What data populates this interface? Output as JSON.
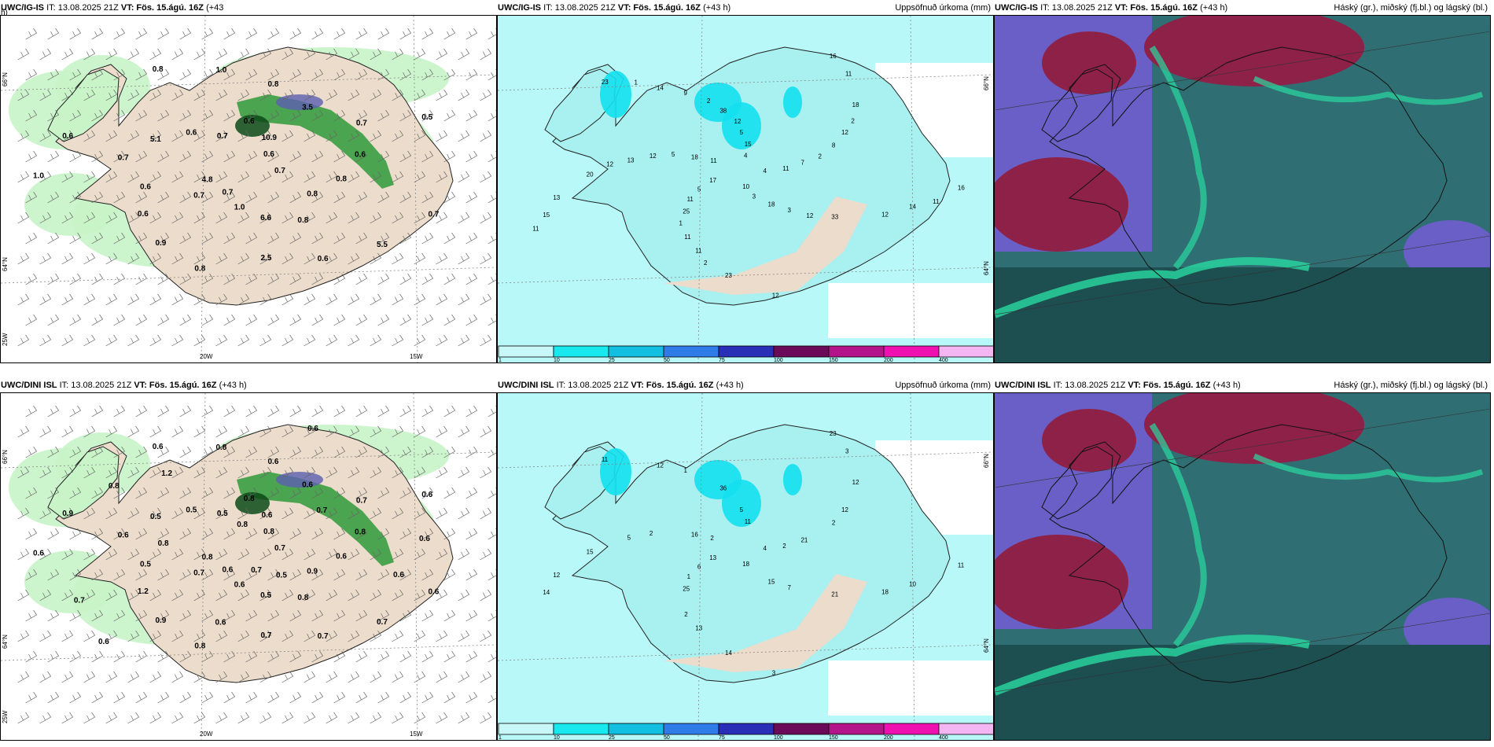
{
  "panels": {
    "wind_igis": {
      "model": "UWC/IG-IS",
      "it_label": "IT: 13.08.2025 21Z",
      "vt_label": "VT: Fös. 15.ágú. 16Z",
      "lead": "(+43",
      "lead_cont": "h)",
      "lat_labels": [
        "66°N",
        "64°N",
        "25W"
      ],
      "lon_labels": [
        "20W",
        "15W"
      ],
      "values": [
        "0.7",
        "0.7",
        "0.6",
        "0.8",
        "0.7",
        "0.7",
        "0.8",
        "0.8",
        "0.7",
        "4.8",
        "10.9",
        "6.6",
        "5.1",
        "0.6",
        "0.9",
        "1.0",
        "5.5",
        "1.0",
        "0.6",
        "1.0",
        "0.6",
        "0.8",
        "0.6",
        "0.8",
        "0.6",
        "0.6",
        "0.5",
        "0.7",
        "0.7",
        "0.8",
        "0.6",
        "3.5",
        "2.5"
      ]
    },
    "precip_igis": {
      "model": "UWC/IG-IS",
      "it_label": "IT: 13.08.2025 21Z",
      "vt_label": "VT: Fös. 15.ágú. 16Z",
      "lead": "(+43 h)",
      "field": "Uppsöfnuð úrkoma (mm)",
      "lat_labels": [
        "66°N",
        "64°N"
      ],
      "values": [
        "4",
        "5",
        "5",
        "3",
        "13",
        "12",
        "11",
        "14",
        "14",
        "15",
        "16",
        "10",
        "18",
        "7",
        "25",
        "38",
        "33",
        "20",
        "18",
        "23",
        "23",
        "16",
        "17",
        "15",
        "18",
        "12",
        "8",
        "11",
        "9",
        "12",
        "13",
        "11",
        "12",
        "11",
        "11",
        "11",
        "12",
        "12",
        "12",
        "2",
        "2",
        "1",
        "11",
        "11",
        "4",
        "3",
        "5",
        "2",
        "1",
        "2"
      ]
    },
    "cloud_igis": {
      "model": "UWC/IG-IS",
      "it_label": "IT: 13.08.2025 21Z",
      "vt_label": "VT: Fös. 15.ágú. 16Z",
      "lead": "(+43 h)",
      "field": "Háský (gr.), miðský (fj.bl.) og lágský (bl.)"
    },
    "wind_dini": {
      "model": "UWC/DINI ISL",
      "it_label": "IT: 13.08.2025 21Z",
      "vt_label": "VT: Fös. 15.ágú. 16Z",
      "lead": "(+43 h)",
      "lat_labels": [
        "66°N",
        "64°N",
        "25W"
      ],
      "lon_labels": [
        "20W",
        "15W"
      ],
      "values": [
        "0.7",
        "0.7",
        "0.8",
        "0.8",
        "0.6",
        "0.7",
        "0.8",
        "0.6",
        "0.6",
        "0.8",
        "0.6",
        "0.5",
        "0.5",
        "0.8",
        "0.9",
        "0.8",
        "0.7",
        "0.6",
        "0.8",
        "0.6",
        "0.5",
        "0.6",
        "1.2",
        "0.6",
        "0.7",
        "0.9",
        "0.6",
        "0.6",
        "0.5",
        "0.9",
        "0.5",
        "0.6",
        "0.7",
        "0.8",
        "0.6",
        "0.6",
        "0.8",
        "0.5",
        "0.8",
        "0.7",
        "0.6",
        "1.2",
        "0.6",
        "0.7",
        "0.6",
        "0.7"
      ]
    },
    "precip_dini": {
      "model": "UWC/DINI ISL",
      "it_label": "IT: 13.08.2025 21Z",
      "vt_label": "VT: Fös. 15.ágú. 16Z",
      "lead": "(+43 h)",
      "field": "Uppsöfnuð úrkoma (mm)",
      "lat_labels": [
        "66°N",
        "64°N"
      ],
      "values": [
        "4",
        "6",
        "5",
        "7",
        "5",
        "12",
        "13",
        "12",
        "10",
        "14",
        "23",
        "18",
        "16",
        "21",
        "25",
        "36",
        "21",
        "15",
        "12",
        "14",
        "11",
        "11",
        "13",
        "11",
        "15",
        "2",
        "2",
        "2",
        "1",
        "18",
        "12",
        "3",
        "3",
        "2",
        "2",
        "1"
      ]
    },
    "cloud_dini": {
      "model": "UWC/DINI ISL",
      "it_label": "IT: 13.08.2025 21Z",
      "vt_label": "VT: Fös. 15.ágú. 16Z",
      "lead": "(+43 h)",
      "field": "Háský (gr.), miðský (fj.bl.) og lágský (bl.)"
    }
  },
  "colorbar": {
    "labels": [
      "1",
      "10",
      "25",
      "50",
      "75",
      "100",
      "150",
      "200",
      "400"
    ],
    "colors": [
      "#c8f7f7",
      "#17e9ee",
      "#12bfe0",
      "#2f7be8",
      "#2a2fb7",
      "#6a0a58",
      "#b4148a",
      "#f012b0",
      "#f4b6f2"
    ]
  },
  "colors": {
    "land": "#ecdccb",
    "sea_precip": "#b8f8f8",
    "precip_light": "#a9f0f0",
    "precip_mid": "#14e0ee",
    "wind_green_light": "#c8f4c8",
    "wind_green_mid": "#2f9a3a",
    "wind_green_dark": "#0c4a18",
    "wind_purple": "#5b5fb0",
    "cloud_teal": "#2f6f73",
    "cloud_dark": "#1e4f50",
    "cloud_blue": "#6a5fc6",
    "cloud_red": "#8e2148",
    "cloud_green": "#28d8a0"
  }
}
